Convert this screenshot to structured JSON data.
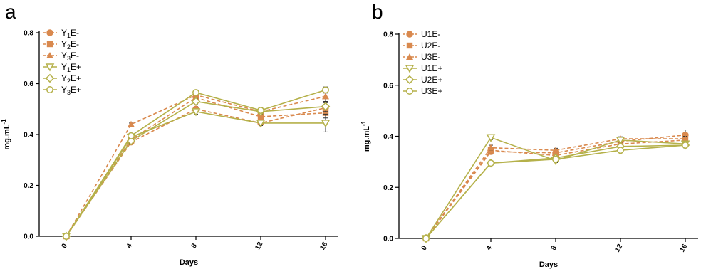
{
  "chart_data": [
    {
      "panel_label": "a",
      "type": "line",
      "xlabel": "Days",
      "ylabel": "mg.mL",
      "ylabel_superscript": "-1",
      "x": [
        0,
        4,
        8,
        12,
        16
      ],
      "xticks": [
        "0",
        "4",
        "8",
        "12",
        "16"
      ],
      "yticks": [
        "0.0",
        "0.2",
        "0.4",
        "0.6",
        "0.8"
      ],
      "ylim": [
        0,
        0.8
      ],
      "legend_position": "top-left",
      "colors": {
        "E_minus": "#D9894E",
        "E_plus": "#B5B14A"
      },
      "series": [
        {
          "name": "Y1E-",
          "label_main": "Y",
          "label_sub": "1",
          "label_tail": "E-",
          "marker": "circle",
          "group": "E_minus",
          "values": [
            0.0,
            0.37,
            0.5,
            0.445,
            0.505
          ],
          "errors": [
            0,
            0.01,
            0.01,
            0.01,
            0.02
          ]
        },
        {
          "name": "Y2E-",
          "label_main": "Y",
          "label_sub": "2",
          "label_tail": "E-",
          "marker": "square",
          "group": "E_minus",
          "values": [
            0.0,
            0.38,
            0.545,
            0.47,
            0.485
          ],
          "errors": [
            0,
            0.01,
            0.01,
            0.01,
            0.02
          ]
        },
        {
          "name": "Y3E-",
          "label_main": "Y",
          "label_sub": "3",
          "label_tail": "E-",
          "marker": "triangle",
          "group": "E_minus",
          "values": [
            0.0,
            0.44,
            0.555,
            0.49,
            0.55
          ],
          "errors": [
            0,
            0.005,
            0.01,
            0.01,
            0.02
          ]
        },
        {
          "name": "Y1E+",
          "label_main": "Y",
          "label_sub": "1",
          "label_tail": "E+",
          "marker": "triangle-down",
          "group": "E_plus",
          "values": [
            0.0,
            0.39,
            0.49,
            0.445,
            0.445
          ],
          "errors": [
            0,
            0.01,
            0.01,
            0.01,
            0.035
          ]
        },
        {
          "name": "Y2E+",
          "label_main": "Y",
          "label_sub": "2",
          "label_tail": "E+",
          "marker": "diamond",
          "group": "E_plus",
          "values": [
            0.0,
            0.375,
            0.53,
            0.49,
            0.51
          ],
          "errors": [
            0,
            0.01,
            0.01,
            0.01,
            0.02
          ]
        },
        {
          "name": "Y3E+",
          "label_main": "Y",
          "label_sub": "3",
          "label_tail": "E+",
          "marker": "circle-open",
          "group": "E_plus",
          "values": [
            0.0,
            0.395,
            0.565,
            0.495,
            0.575
          ],
          "errors": [
            0,
            0.01,
            0.01,
            0.01,
            0.012
          ]
        }
      ]
    },
    {
      "panel_label": "b",
      "type": "line",
      "xlabel": "Days",
      "ylabel": "mg.mL",
      "ylabel_superscript": "-1",
      "x": [
        0,
        4,
        8,
        12,
        16
      ],
      "xticks": [
        "0",
        "4",
        "8",
        "12",
        "16"
      ],
      "yticks": [
        "0.0",
        "0.2",
        "0.4",
        "0.6",
        "0.8"
      ],
      "ylim": [
        0,
        0.8
      ],
      "legend_position": "top-left",
      "colors": {
        "E_minus": "#D9894E",
        "E_plus": "#B5B14A"
      },
      "series": [
        {
          "name": "U1E-",
          "label_main": "U1E-",
          "label_sub": "",
          "label_tail": "",
          "marker": "circle",
          "group": "E_minus",
          "values": [
            0.0,
            0.34,
            0.335,
            0.38,
            0.405
          ],
          "errors": [
            0,
            0.01,
            0.008,
            0.008,
            0.02
          ]
        },
        {
          "name": "U2E-",
          "label_main": "U2E-",
          "label_sub": "",
          "label_tail": "",
          "marker": "square",
          "group": "E_minus",
          "values": [
            0.0,
            0.345,
            0.325,
            0.37,
            0.385
          ],
          "errors": [
            0,
            0.01,
            0.008,
            0.008,
            0.01
          ]
        },
        {
          "name": "U3E-",
          "label_main": "U3E-",
          "label_sub": "",
          "label_tail": "",
          "marker": "triangle",
          "group": "E_minus",
          "values": [
            0.0,
            0.355,
            0.345,
            0.39,
            0.39
          ],
          "errors": [
            0,
            0.01,
            0.008,
            0.008,
            0.01
          ]
        },
        {
          "name": "U1E+",
          "label_main": "U1E+",
          "label_sub": "",
          "label_tail": "",
          "marker": "triangle-down",
          "group": "E_plus",
          "values": [
            0.0,
            0.395,
            0.305,
            0.385,
            0.37
          ],
          "errors": [
            0,
            0.008,
            0.008,
            0.008,
            0.01
          ]
        },
        {
          "name": "U2E+",
          "label_main": "U2E+",
          "label_sub": "",
          "label_tail": "",
          "marker": "diamond",
          "group": "E_plus",
          "values": [
            0.0,
            0.295,
            0.315,
            0.36,
            0.365
          ],
          "errors": [
            0,
            0.008,
            0.008,
            0.008,
            0.01
          ]
        },
        {
          "name": "U3E+",
          "label_main": "U3E+",
          "label_sub": "",
          "label_tail": "",
          "marker": "circle-open",
          "group": "E_plus",
          "values": [
            0.0,
            0.295,
            0.31,
            0.345,
            0.365
          ],
          "errors": [
            0,
            0.008,
            0.008,
            0.008,
            0.01
          ]
        }
      ]
    }
  ]
}
